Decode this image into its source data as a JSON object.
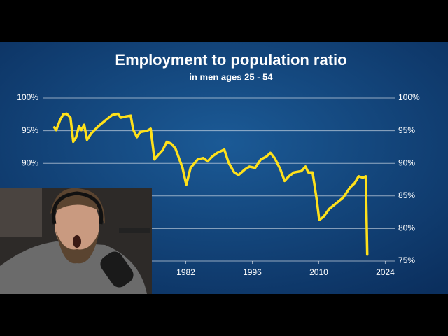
{
  "chart_data": {
    "type": "line",
    "title": "Employment to population ratio",
    "subtitle": "in men ages 25 - 54",
    "x": [
      1954.3,
      1954.7,
      1955.5,
      1956.2,
      1956.9,
      1957.7,
      1958.3,
      1958.9,
      1959.5,
      1960.0,
      1960.6,
      1961.2,
      1962.1,
      1963.6,
      1965.1,
      1966.5,
      1967.7,
      1968.3,
      1969.5,
      1970.4,
      1970.9,
      1971.7,
      1972.4,
      1973.9,
      1974.6,
      1975.4,
      1976.1,
      1977.1,
      1978.0,
      1978.9,
      1979.8,
      1981.3,
      1982.1,
      1983.0,
      1984.5,
      1985.7,
      1986.6,
      1987.5,
      1988.6,
      1990.1,
      1991.0,
      1992.2,
      1993.1,
      1994.5,
      1995.4,
      1996.6,
      1997.8,
      1998.9,
      1999.8,
      2000.7,
      2001.9,
      2002.8,
      2003.7,
      2004.8,
      2006.3,
      2007.2,
      2007.8,
      2008.7,
      2009.6,
      2010.1,
      2011.0,
      2012.2,
      2013.7,
      2015.2,
      2016.6,
      2017.5,
      2018.4,
      2019.3,
      2019.9,
      2020.2
    ],
    "series": [
      {
        "color": "#ffe11a",
        "values": [
          95.5,
          95.1,
          96.6,
          97.5,
          97.6,
          97.0,
          93.3,
          94.0,
          95.7,
          95.1,
          95.9,
          93.6,
          94.6,
          95.7,
          96.6,
          97.4,
          97.6,
          97.0,
          97.2,
          97.3,
          95.2,
          94.0,
          94.8,
          95.0,
          95.3,
          90.6,
          91.2,
          92.0,
          93.3,
          93.0,
          92.3,
          89.3,
          86.7,
          89.3,
          90.6,
          90.8,
          90.3,
          91.0,
          91.6,
          92.1,
          90.1,
          88.6,
          88.2,
          89.1,
          89.5,
          89.3,
          90.6,
          91.0,
          91.6,
          90.8,
          89.1,
          87.3,
          88.0,
          88.6,
          88.8,
          89.5,
          88.6,
          88.6,
          84.3,
          81.3,
          81.8,
          83.0,
          83.9,
          84.8,
          86.3,
          86.9,
          88.0,
          87.8,
          88.0,
          76.0
        ]
      }
    ],
    "xlim": [
      1952,
      2026
    ],
    "xticks": [
      1982,
      1996,
      2010,
      2024
    ],
    "ylim": [
      75,
      100
    ],
    "yticks": [
      {
        "value": 75,
        "label": "75%"
      },
      {
        "value": 80,
        "label": "80%"
      },
      {
        "value": 85,
        "label": "85%"
      },
      {
        "value": 90,
        "label": "90%"
      },
      {
        "value": 95,
        "label": "95%"
      },
      {
        "value": 100,
        "label": "100%"
      }
    ],
    "grid": true
  }
}
